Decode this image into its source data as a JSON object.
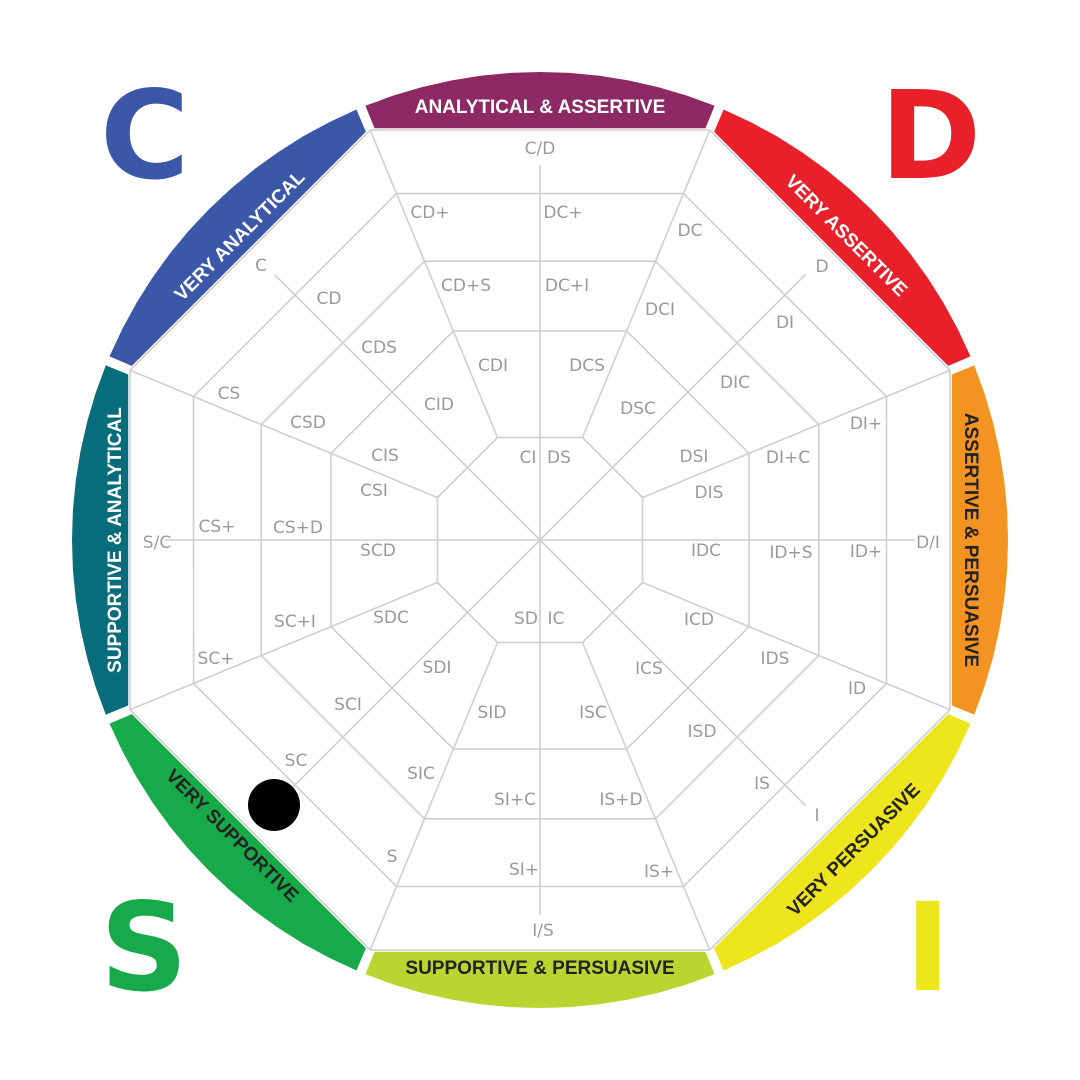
{
  "corner_letters": {
    "c": {
      "text": "C",
      "color": "#3b57a8"
    },
    "d": {
      "text": "D",
      "color": "#e8202a"
    },
    "s": {
      "text": "S",
      "color": "#18a94a"
    },
    "i": {
      "text": "I",
      "color": "#eee51c"
    }
  },
  "bands": [
    {
      "label": "ANALYTICAL & ASSERTIVE",
      "color": "#8e2a63",
      "text_color": "#ffffff"
    },
    {
      "label": "VERY ASSERTIVE",
      "color": "#e8202a",
      "text_color": "#ffffff"
    },
    {
      "label": "ASSERTIVE & PERSUASIVE",
      "color": "#f39322",
      "text_color": "#222222"
    },
    {
      "label": "VERY PERSUASIVE",
      "color": "#eee51c",
      "text_color": "#222222"
    },
    {
      "label": "SUPPORTIVE & PERSUASIVE",
      "color": "#bcd431",
      "text_color": "#222222"
    },
    {
      "label": "VERY SUPPORTIVE",
      "color": "#18a94a",
      "text_color": "#222222"
    },
    {
      "label": "SUPPORTIVE & ANALYTICAL",
      "color": "#086d7b",
      "text_color": "#ffffff"
    },
    {
      "label": "VERY ANALYTICAL",
      "color": "#3b57a8",
      "text_color": "#ffffff"
    }
  ],
  "cells": {
    "outer_ring": [
      "C/D",
      "D",
      "D/I",
      "I",
      "I/S",
      "S",
      "S/C",
      "C"
    ],
    "ring2": [
      "CD+",
      "DC+",
      "DC",
      "DI",
      "DI+",
      "ID+",
      "ID",
      "IS",
      "IS+",
      "SI+",
      "SI",
      "SC",
      "SC+",
      "CS+",
      "CS",
      "CD"
    ],
    "ring3": [
      "CD+S",
      "DC+I",
      "DCI",
      "DIC",
      "DI+C",
      "ID+S",
      "IDS",
      "ISD",
      "IS+D",
      "SI+C",
      "SIC",
      "SCI",
      "SC+I",
      "CS+D",
      "CSD",
      "CDS"
    ],
    "ring4": [
      "CDI",
      "DCS",
      "DSC",
      "DSI",
      "DIS",
      "IDC",
      "ICD",
      "ICS",
      "ISC",
      "SID",
      "SDI",
      "SDC",
      "SCD",
      "CSI",
      "CIS",
      "CID"
    ],
    "center": [
      "CI",
      "DS",
      "IC",
      "SD"
    ]
  },
  "marker": {
    "color": "#000000",
    "position_label": "SC"
  }
}
